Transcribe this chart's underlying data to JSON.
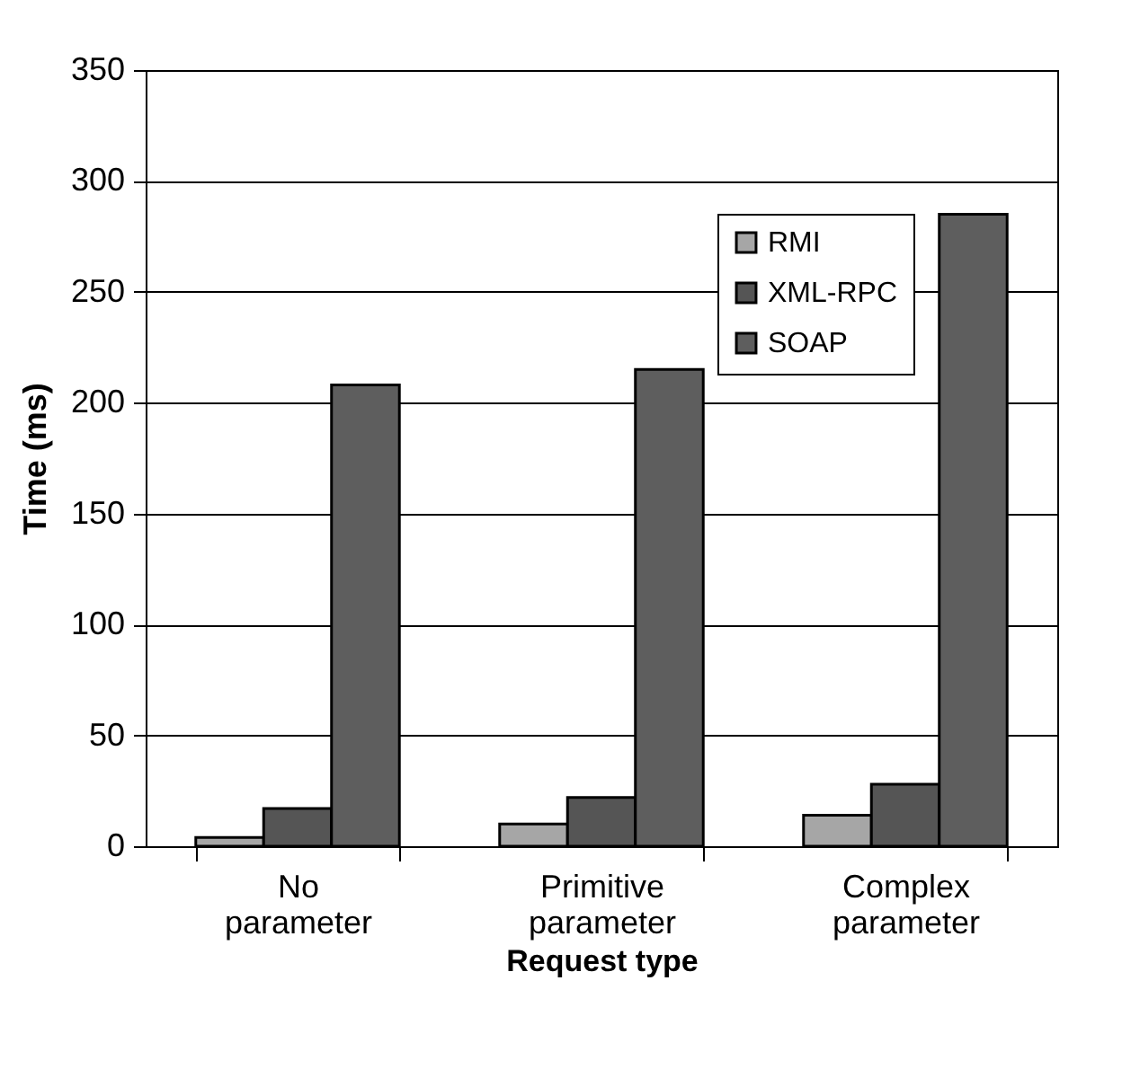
{
  "chart_data": {
    "type": "bar",
    "xlabel": "Request type",
    "ylabel": "Time (ms)",
    "categories": [
      "No parameter",
      "Primitive parameter",
      "Complex parameter"
    ],
    "series": [
      {
        "name": "RMI",
        "color": "#a6a6a6",
        "values": [
          4,
          10,
          14
        ]
      },
      {
        "name": "XML-RPC",
        "color": "#555555",
        "values": [
          17,
          22,
          28
        ]
      },
      {
        "name": "SOAP",
        "color": "#5e5e5e",
        "values": [
          208,
          215,
          285
        ]
      }
    ],
    "ylim": [
      0,
      350
    ],
    "yticks": [
      0,
      50,
      100,
      150,
      200,
      250,
      300,
      350
    ],
    "grid": "y",
    "legend": "top right"
  }
}
